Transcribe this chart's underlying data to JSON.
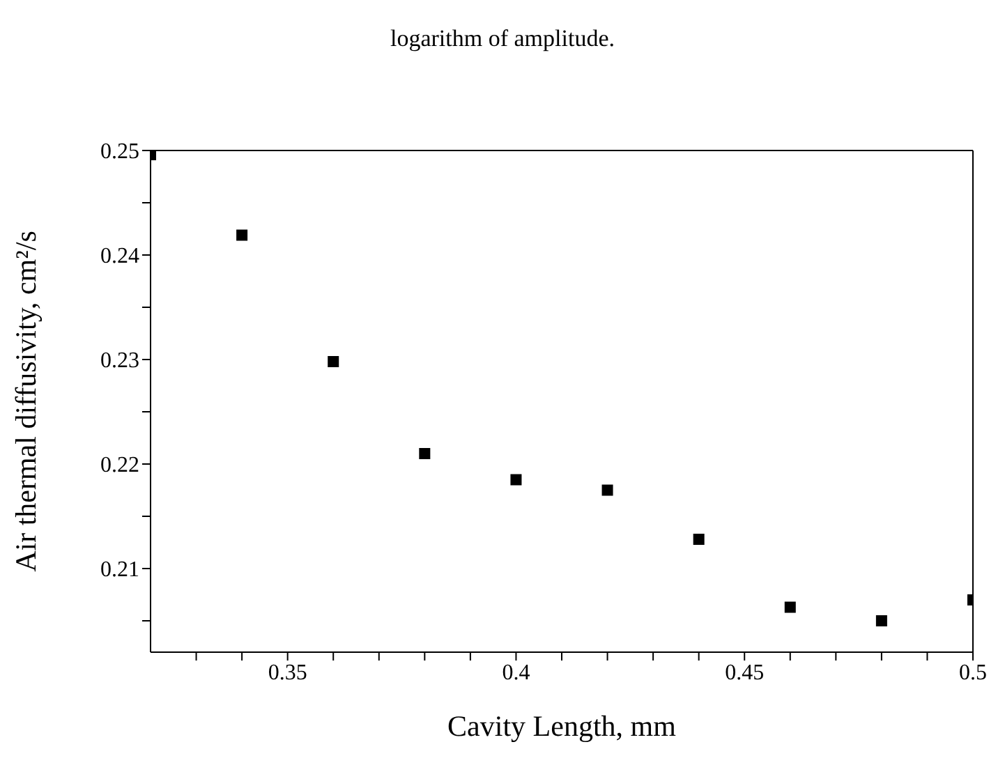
{
  "chart_data": {
    "type": "scatter",
    "title": "logarithm of amplitude.",
    "xlabel": "Cavity Length,  mm",
    "ylabel": "Air thermal diffusivity,  cm²/s",
    "x": [
      0.32,
      0.34,
      0.36,
      0.38,
      0.4,
      0.42,
      0.44,
      0.46,
      0.48,
      0.5
    ],
    "series": [
      {
        "color": "#000000",
        "values": [
          0.2496,
          0.2419,
          0.2298,
          0.221,
          0.2185,
          0.2175,
          0.2128,
          0.2063,
          0.205,
          0.207
        ]
      }
    ],
    "marker": "square",
    "legend": false,
    "xlim": [
      0.32,
      0.5
    ],
    "ylim": [
      0.202,
      0.25
    ],
    "xticks": [
      {
        "value": 0.33,
        "label": null
      },
      {
        "value": 0.34,
        "label": null
      },
      {
        "value": 0.35,
        "label": "0.35"
      },
      {
        "value": 0.36,
        "label": null
      },
      {
        "value": 0.37,
        "label": null
      },
      {
        "value": 0.38,
        "label": null
      },
      {
        "value": 0.39,
        "label": null
      },
      {
        "value": 0.4,
        "label": "0.4"
      },
      {
        "value": 0.41,
        "label": null
      },
      {
        "value": 0.42,
        "label": null
      },
      {
        "value": 0.43,
        "label": null
      },
      {
        "value": 0.44,
        "label": null
      },
      {
        "value": 0.45,
        "label": "0.45"
      },
      {
        "value": 0.46,
        "label": null
      },
      {
        "value": 0.47,
        "label": null
      },
      {
        "value": 0.48,
        "label": null
      },
      {
        "value": 0.49,
        "label": null
      },
      {
        "value": 0.5,
        "label": "0.5"
      }
    ],
    "yticks": [
      {
        "value": 0.205,
        "label": null
      },
      {
        "value": 0.21,
        "label": "0.21"
      },
      {
        "value": 0.215,
        "label": null
      },
      {
        "value": 0.22,
        "label": "0.22"
      },
      {
        "value": 0.225,
        "label": null
      },
      {
        "value": 0.23,
        "label": "0.23"
      },
      {
        "value": 0.235,
        "label": null
      },
      {
        "value": 0.24,
        "label": "0.24"
      },
      {
        "value": 0.245,
        "label": null
      },
      {
        "value": 0.25,
        "label": "0.25"
      }
    ]
  }
}
